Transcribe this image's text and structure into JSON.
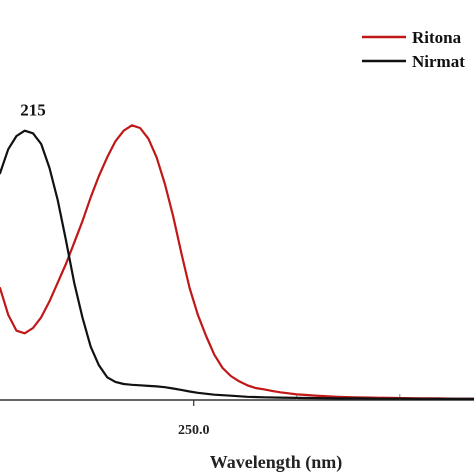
{
  "chart_data": {
    "type": "line",
    "xlabel": "Wavelength (nm)",
    "ylabel": "",
    "grid": false,
    "legend_position": "top-right",
    "x_ticks": [
      250.0
    ],
    "x_tick_labels": [
      "250.0"
    ],
    "xlim": [
      203,
      318
    ],
    "ylim": [
      0,
      1.05
    ],
    "annotations": [
      {
        "text": "215",
        "x": 211,
        "y": 1.015
      }
    ],
    "series": [
      {
        "name": "Ritona",
        "color": "#c01818",
        "x": [
          203,
          205,
          207,
          209,
          211,
          213,
          215,
          217,
          219,
          221,
          223,
          225,
          227,
          229,
          231,
          233,
          235,
          237,
          239,
          241,
          243,
          245,
          247,
          249,
          251,
          253,
          255,
          257,
          259,
          261,
          263,
          265,
          267,
          269,
          271,
          273,
          275,
          277,
          279,
          281,
          285,
          289,
          293,
          297,
          301,
          305,
          309,
          313,
          318
        ],
        "values": [
          0.42,
          0.32,
          0.26,
          0.25,
          0.27,
          0.31,
          0.37,
          0.44,
          0.51,
          0.59,
          0.67,
          0.76,
          0.84,
          0.91,
          0.97,
          1.01,
          1.03,
          1.02,
          0.98,
          0.91,
          0.81,
          0.69,
          0.55,
          0.42,
          0.32,
          0.24,
          0.17,
          0.12,
          0.09,
          0.07,
          0.055,
          0.045,
          0.04,
          0.034,
          0.029,
          0.025,
          0.021,
          0.019,
          0.017,
          0.015,
          0.012,
          0.01,
          0.009,
          0.008,
          0.007,
          0.006,
          0.006,
          0.005,
          0.005
        ]
      },
      {
        "name": "Nirmat",
        "color": "#111111",
        "x": [
          203,
          205,
          207,
          209,
          211,
          213,
          215,
          217,
          219,
          221,
          223,
          225,
          227,
          229,
          231,
          233,
          235,
          237,
          239,
          241,
          243,
          245,
          247,
          249,
          251,
          255,
          259,
          263,
          267,
          271,
          275,
          280,
          285,
          290,
          295,
          300,
          305,
          310,
          318
        ],
        "values": [
          0.85,
          0.94,
          0.99,
          1.01,
          1.0,
          0.96,
          0.87,
          0.75,
          0.6,
          0.44,
          0.31,
          0.2,
          0.13,
          0.085,
          0.068,
          0.06,
          0.057,
          0.055,
          0.053,
          0.051,
          0.048,
          0.043,
          0.038,
          0.032,
          0.027,
          0.02,
          0.016,
          0.012,
          0.01,
          0.009,
          0.008,
          0.007,
          0.006,
          0.006,
          0.005,
          0.005,
          0.004,
          0.004,
          0.004
        ]
      }
    ]
  }
}
